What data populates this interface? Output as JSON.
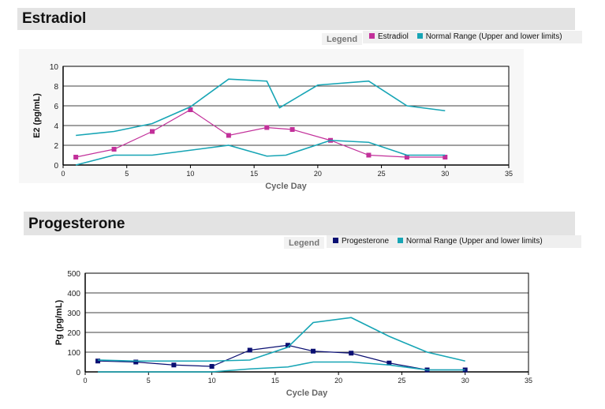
{
  "colors": {
    "estradiol": "#c2309a",
    "progesterone": "#0a0f72",
    "normal": "#17a5b5"
  },
  "chart_data": [
    {
      "type": "line",
      "title": "Estradiol",
      "legend_title": "Legend",
      "legend": [
        "Estradiol",
        "Normal Range (Upper and lower limits)"
      ],
      "xlabel": "Cycle Day",
      "ylabel": "E2 (pg/mL)",
      "xlim": [
        0,
        35
      ],
      "ylim": [
        0,
        10
      ],
      "xticks": [
        0,
        5,
        10,
        15,
        20,
        25,
        30,
        35
      ],
      "yticks": [
        0,
        2,
        4,
        6,
        8,
        10
      ],
      "grid": true,
      "series": [
        {
          "name": "Estradiol",
          "role": "measured",
          "x": [
            1,
            4,
            7,
            10,
            13,
            16,
            18,
            21,
            24,
            27,
            30
          ],
          "y": [
            0.8,
            1.6,
            3.4,
            5.6,
            3.0,
            3.8,
            3.6,
            2.5,
            1.0,
            0.8,
            0.8
          ]
        },
        {
          "name": "Normal Range (Upper and lower limits)",
          "role": "upper",
          "x": [
            1,
            4,
            7,
            10,
            13,
            16,
            17,
            20,
            24,
            27,
            30
          ],
          "y": [
            3.0,
            3.4,
            4.2,
            5.9,
            8.7,
            8.5,
            5.8,
            8.1,
            8.5,
            6.0,
            5.5
          ]
        },
        {
          "name": "",
          "role": "lower",
          "x": [
            1,
            4,
            7,
            10,
            13,
            16,
            17.5,
            21,
            24,
            27,
            30
          ],
          "y": [
            0,
            1.0,
            1.0,
            1.5,
            2.0,
            0.9,
            1.0,
            2.5,
            2.3,
            1.0,
            1.0
          ]
        }
      ]
    },
    {
      "type": "line",
      "title": "Progesterone",
      "legend_title": "Legend",
      "legend": [
        "Progesterone",
        "Normal Range  (Upper and lower limits)"
      ],
      "xlabel": "Cycle Day",
      "ylabel": "Pg (pg/mL)",
      "xlim": [
        0,
        35
      ],
      "ylim": [
        0,
        500
      ],
      "xticks": [
        0,
        5,
        10,
        15,
        20,
        25,
        30,
        35
      ],
      "yticks": [
        0,
        100,
        200,
        300,
        400,
        500
      ],
      "grid": true,
      "series": [
        {
          "name": "Progesterone",
          "role": "measured",
          "x": [
            1,
            4,
            7,
            10,
            13,
            16,
            18,
            21,
            24,
            27,
            30
          ],
          "y": [
            55,
            50,
            35,
            28,
            110,
            135,
            105,
            95,
            45,
            10,
            10
          ]
        },
        {
          "name": "Normal Range  (Upper and lower limits)",
          "role": "upper",
          "x": [
            1,
            4,
            7,
            10,
            13,
            16,
            18,
            21,
            24,
            27,
            30
          ],
          "y": [
            60,
            55,
            55,
            55,
            60,
            125,
            250,
            275,
            180,
            100,
            55
          ]
        },
        {
          "name": "",
          "role": "lower",
          "x": [
            1,
            4,
            7,
            10,
            13,
            16,
            18,
            21,
            24,
            27,
            30
          ],
          "y": [
            0,
            0,
            0,
            0,
            15,
            25,
            50,
            50,
            35,
            10,
            10
          ]
        }
      ]
    }
  ]
}
